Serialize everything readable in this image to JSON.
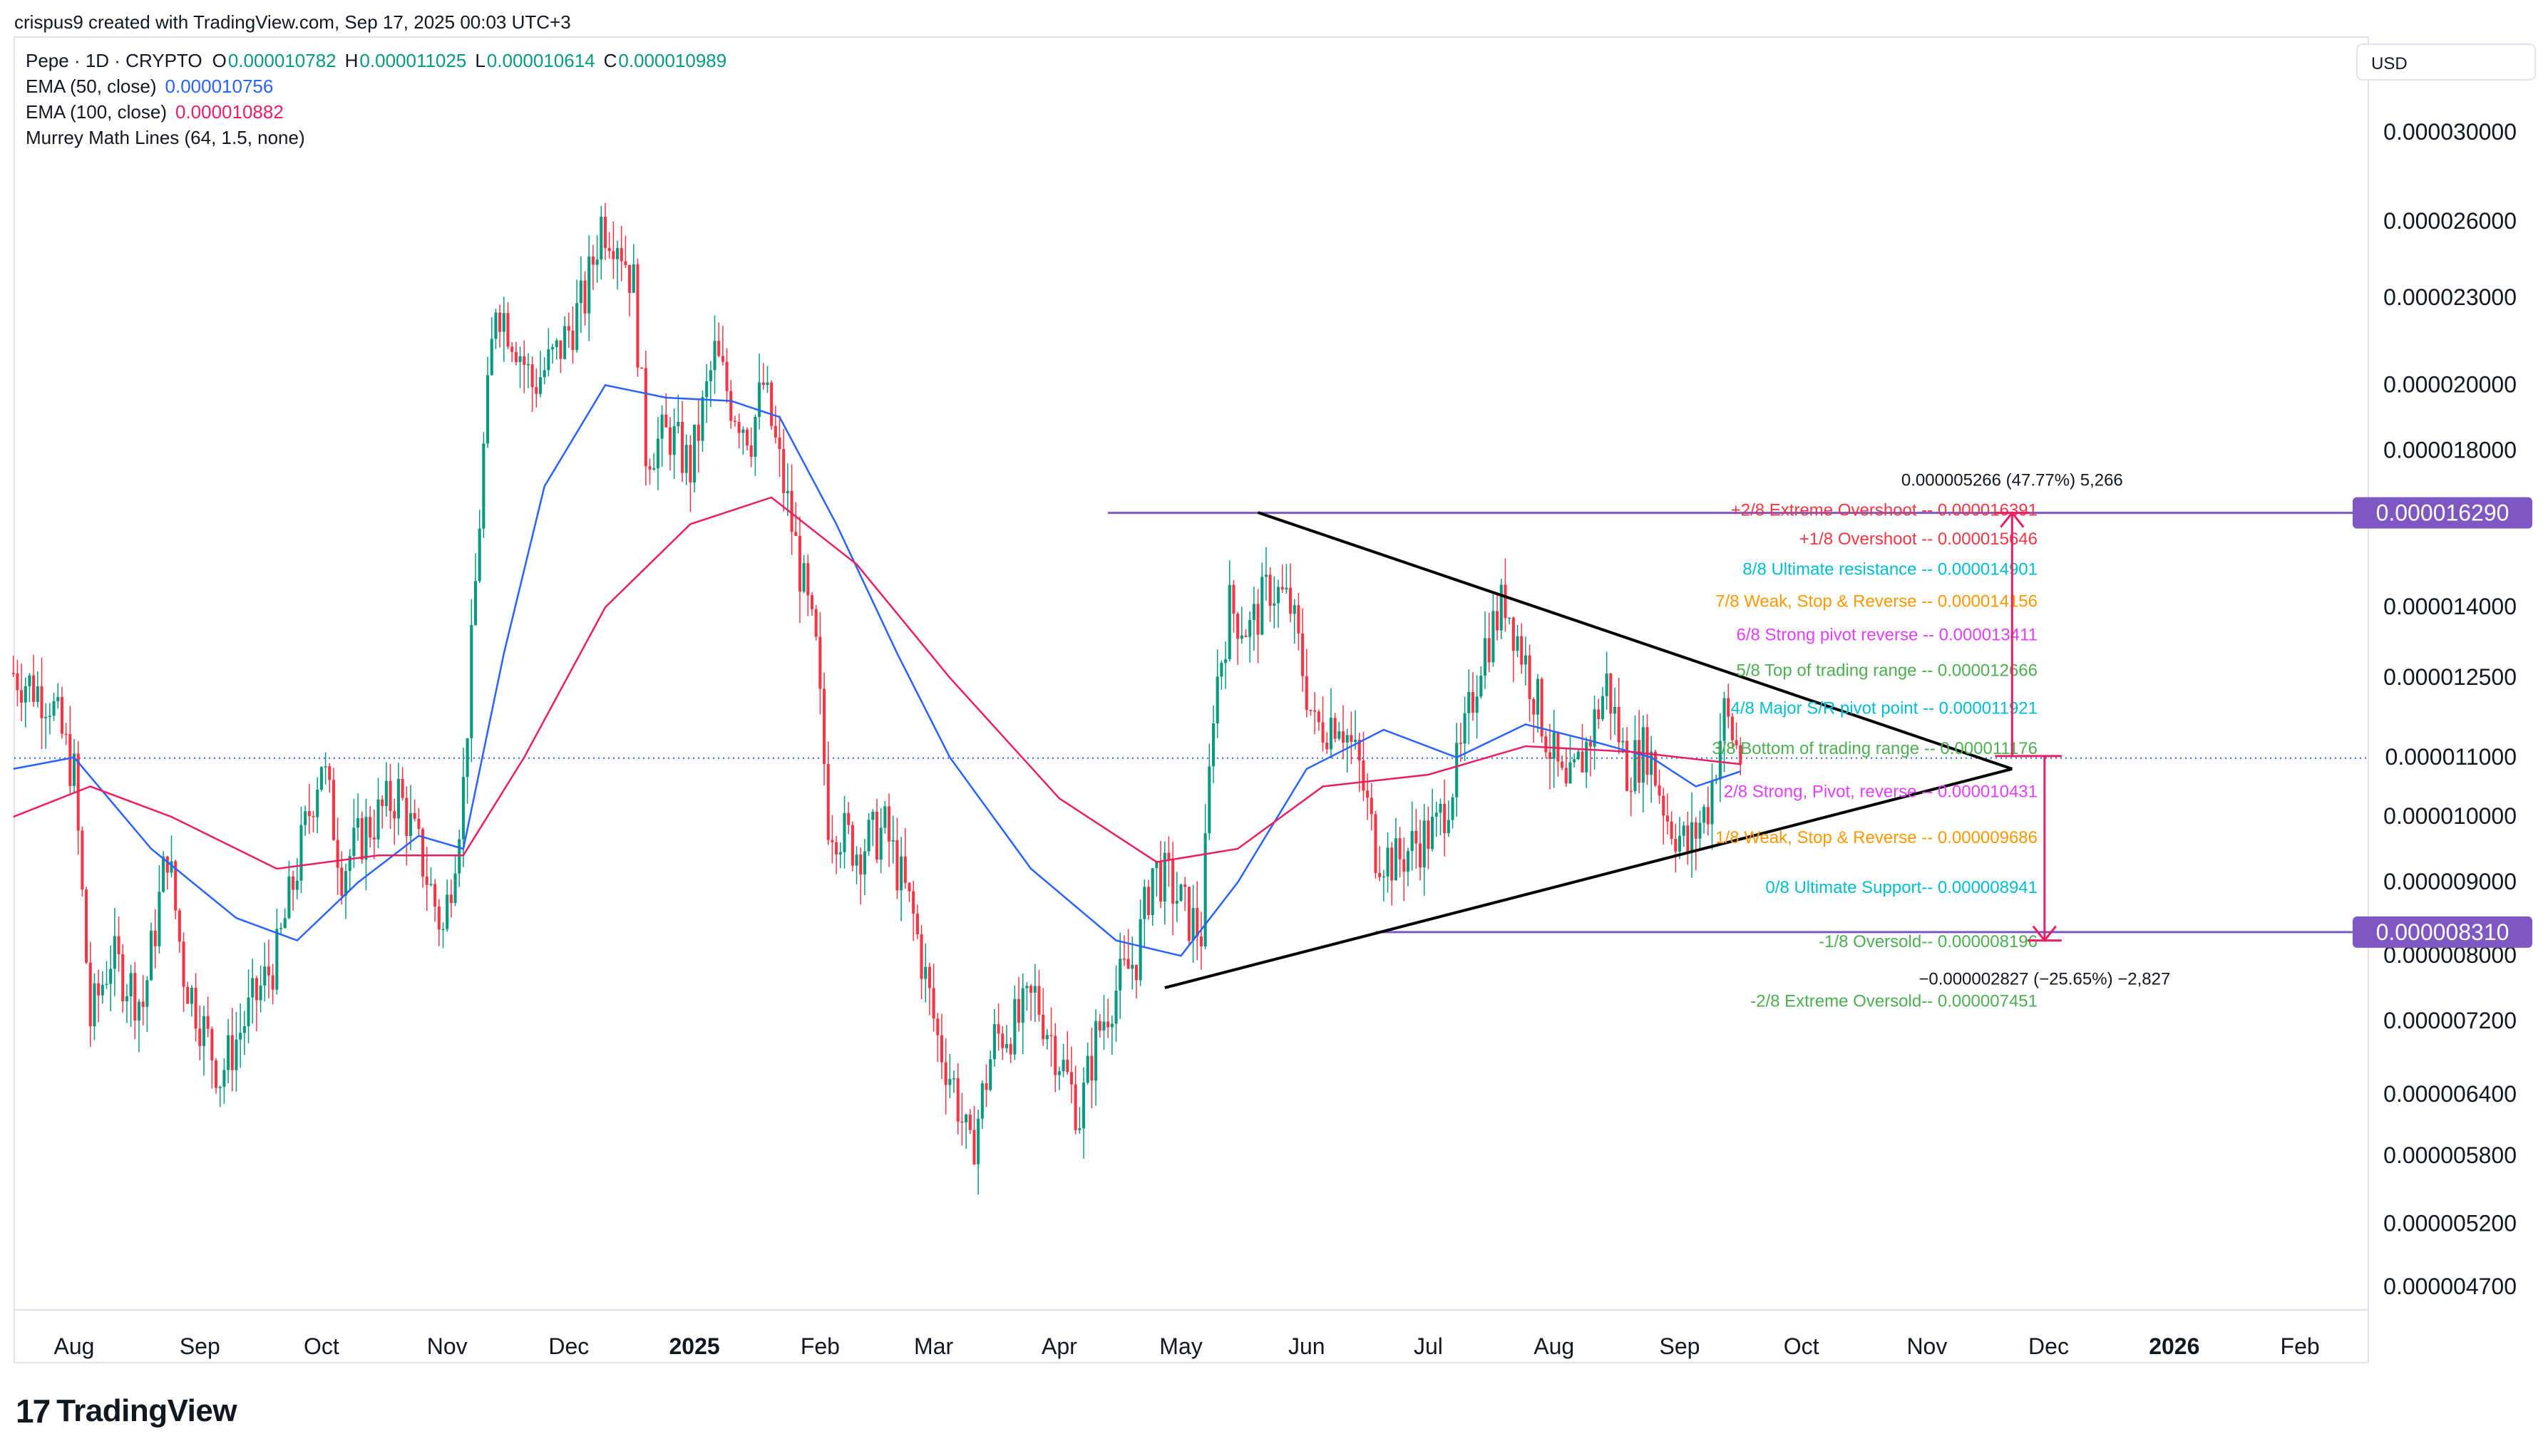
{
  "header": {
    "creator_line": "crispus9 created with TradingView.com, Sep 17, 2025 00:03 UTC+3",
    "symbol": "Pepe · 1D · CRYPTO",
    "ohlc": [
      {
        "k": "O",
        "v": "0.000010782"
      },
      {
        "k": "H",
        "v": "0.000011025"
      },
      {
        "k": "L",
        "v": "0.000010614"
      },
      {
        "k": "C",
        "v": "0.000010989"
      }
    ],
    "indicators": [
      {
        "label": "EMA (50, close)",
        "value": "0.000010756",
        "color": "#2962ff"
      },
      {
        "label": "EMA (100, close)",
        "value": "0.000010882",
        "color": "#e91e63"
      },
      {
        "label": "Murrey Math Lines (64, 1.5, none)",
        "value": "",
        "color": "#131722"
      }
    ],
    "currency": "USD"
  },
  "footer": {
    "logo_mark": "17",
    "logo_text": "TradingView"
  },
  "chart_data": {
    "type": "candlestick",
    "x_axis_labels": [
      {
        "label": "Aug",
        "date": "2024-08-01",
        "bold": false
      },
      {
        "label": "Sep",
        "date": "2024-09-01",
        "bold": false
      },
      {
        "label": "Oct",
        "date": "2024-10-01",
        "bold": false
      },
      {
        "label": "Nov",
        "date": "2024-11-01",
        "bold": false
      },
      {
        "label": "Dec",
        "date": "2024-12-01",
        "bold": false
      },
      {
        "label": "2025",
        "date": "2025-01-01",
        "bold": true
      },
      {
        "label": "Feb",
        "date": "2025-02-01",
        "bold": false
      },
      {
        "label": "Mar",
        "date": "2025-03-01",
        "bold": false
      },
      {
        "label": "Apr",
        "date": "2025-04-01",
        "bold": false
      },
      {
        "label": "May",
        "date": "2025-05-01",
        "bold": false
      },
      {
        "label": "Jun",
        "date": "2025-06-01",
        "bold": false
      },
      {
        "label": "Jul",
        "date": "2025-07-01",
        "bold": false
      },
      {
        "label": "Aug",
        "date": "2025-08-01",
        "bold": false
      },
      {
        "label": "Sep",
        "date": "2025-09-01",
        "bold": false
      },
      {
        "label": "Oct",
        "date": "2025-10-01",
        "bold": false
      },
      {
        "label": "Nov",
        "date": "2025-11-01",
        "bold": false
      },
      {
        "label": "Dec",
        "date": "2025-12-01",
        "bold": false
      },
      {
        "label": "2026",
        "date": "2026-01-01",
        "bold": true
      },
      {
        "label": "Feb",
        "date": "2026-02-01",
        "bold": false
      }
    ],
    "y_axis_labels": [
      "0.000030000",
      "0.000026000",
      "0.000023000",
      "0.000020000",
      "0.000018000",
      "0.000014000",
      "0.000012500",
      "0.000011000",
      "0.000010000",
      "0.000009000",
      "0.000008000",
      "0.000007200",
      "0.000006400",
      "0.000005800",
      "0.000005200",
      "0.000004700"
    ],
    "y_scale": "log",
    "ylim": [
      4.5e-06,
      3.25e-05
    ],
    "price_tags": [
      {
        "value": 1.629e-05,
        "label": "0.000016290",
        "color": "#7e57c2"
      },
      {
        "value": 8.31e-06,
        "label": "0.000008310",
        "color": "#7e57c2"
      }
    ],
    "current_price": 1.0989e-05,
    "horizontal_lines": [
      {
        "value": 1.629e-05,
        "from": "2025-04-13",
        "color": "#7e57c2"
      },
      {
        "value": 8.31e-06,
        "from": "2025-06-18",
        "color": "#7e57c2"
      }
    ],
    "murrey_levels": [
      {
        "label": "+2/8 Extreme Overshoot --",
        "value": "0.000016391",
        "price": 1.6391e-05,
        "color": "#f23645"
      },
      {
        "label": "+1/8 Overshoot --",
        "value": "0.000015646",
        "price": 1.5646e-05,
        "color": "#f23645"
      },
      {
        "label": "8/8 Ultimate resistance --",
        "value": "0.000014901",
        "price": 1.4901e-05,
        "color": "#00bcd4"
      },
      {
        "label": "7/8 Weak, Stop & Reverse --",
        "value": "0.000014156",
        "price": 1.4156e-05,
        "color": "#ff9800"
      },
      {
        "label": "6/8 Strong pivot reverse --",
        "value": "0.000013411",
        "price": 1.3411e-05,
        "color": "#e040fb"
      },
      {
        "label": "5/8 Top of trading range --",
        "value": "0.000012666",
        "price": 1.2666e-05,
        "color": "#4caf50"
      },
      {
        "label": "4/8 Major S/R pivot point --",
        "value": "0.000011921",
        "price": 1.1921e-05,
        "color": "#00bcd4"
      },
      {
        "label": "3/8 Bottom of trading range --",
        "value": "0.000011176",
        "price": 1.1176e-05,
        "color": "#4caf50"
      },
      {
        "label": "2/8 Strong, Pivot, reverse --",
        "value": "0.000010431",
        "price": 1.0431e-05,
        "color": "#e040fb"
      },
      {
        "label": "1/8 Weak, Stop & Reverse --",
        "value": "0.000009686",
        "price": 9.686e-06,
        "color": "#ff9800"
      },
      {
        "label": "0/8 Ultimate Support--",
        "value": "0.000008941",
        "price": 8.941e-06,
        "color": "#00bcd4"
      },
      {
        "label": "-1/8 Oversold--",
        "value": "0.000008196",
        "price": 8.196e-06,
        "color": "#4caf50"
      },
      {
        "label": "-2/8 Extreme Oversold--",
        "value": "0.000007451",
        "price": 7.451e-06,
        "color": "#4caf50"
      }
    ],
    "triangle": {
      "upper": [
        {
          "date": "2025-05-20",
          "price": 1.63e-05
        },
        {
          "date": "2025-11-22",
          "price": 1.08e-05
        }
      ],
      "lower": [
        {
          "date": "2025-04-27",
          "price": 7.6e-06
        },
        {
          "date": "2025-11-22",
          "price": 1.08e-05
        }
      ]
    },
    "measures": [
      {
        "date": "2025-11-22",
        "from": 1.1025e-05,
        "to": 1.629e-05,
        "label": "0.000005266 (47.77%) 5,266",
        "color": "#e91e63"
      },
      {
        "date": "2025-11-30",
        "from": 1.1025e-05,
        "to": 8.2e-06,
        "label": "−0.000002827 (−25.65%) −2,827",
        "color": "#e91e63"
      }
    ],
    "series": [
      {
        "name": "Pepe",
        "kind": "close",
        "color_up": "#089981",
        "color_down": "#f23645",
        "points": [
          [
            "2024-07-17",
            1.26e-05
          ],
          [
            "2024-07-26",
            1.21e-05
          ],
          [
            "2024-08-01",
            1.07e-05
          ],
          [
            "2024-08-05",
            7.2e-06
          ],
          [
            "2024-08-10",
            8e-06
          ],
          [
            "2024-08-18",
            7.4e-06
          ],
          [
            "2024-08-24",
            9.5e-06
          ],
          [
            "2024-08-28",
            7.8e-06
          ],
          [
            "2024-09-06",
            6.6e-06
          ],
          [
            "2024-09-12",
            7.2e-06
          ],
          [
            "2024-09-20",
            8e-06
          ],
          [
            "2024-09-27",
            9.8e-06
          ],
          [
            "2024-10-01",
            1.1e-05
          ],
          [
            "2024-10-06",
            9.2e-06
          ],
          [
            "2024-10-12",
            9.8e-06
          ],
          [
            "2024-10-20",
            1.04e-05
          ],
          [
            "2024-10-26",
            9.3e-06
          ],
          [
            "2024-10-31",
            8.3e-06
          ],
          [
            "2024-11-05",
            1.05e-05
          ],
          [
            "2024-11-10",
            1.8e-05
          ],
          [
            "2024-11-13",
            2.3e-05
          ],
          [
            "2024-11-18",
            2.15e-05
          ],
          [
            "2024-11-22",
            2e-05
          ],
          [
            "2024-11-28",
            2.1e-05
          ],
          [
            "2024-12-05",
            2.3e-05
          ],
          [
            "2024-12-09",
            2.6e-05
          ],
          [
            "2024-12-13",
            2.55e-05
          ],
          [
            "2024-12-17",
            2.35e-05
          ],
          [
            "2024-12-20",
            1.8e-05
          ],
          [
            "2024-12-26",
            1.85e-05
          ],
          [
            "2024-12-31",
            1.75e-05
          ],
          [
            "2025-01-06",
            2.1e-05
          ],
          [
            "2025-01-10",
            1.95e-05
          ],
          [
            "2025-01-15",
            1.85e-05
          ],
          [
            "2025-01-18",
            2e-05
          ],
          [
            "2025-01-24",
            1.65e-05
          ],
          [
            "2025-01-31",
            1.3e-05
          ],
          [
            "2025-02-03",
            1e-05
          ],
          [
            "2025-02-10",
            9.5e-06
          ],
          [
            "2025-02-17",
            9.8e-06
          ],
          [
            "2025-02-24",
            8.5e-06
          ],
          [
            "2025-03-02",
            7e-06
          ],
          [
            "2025-03-06",
            6.5e-06
          ],
          [
            "2025-03-10",
            5.8e-06
          ],
          [
            "2025-03-16",
            7e-06
          ],
          [
            "2025-03-22",
            7.2e-06
          ],
          [
            "2025-03-26",
            7.5e-06
          ],
          [
            "2025-04-01",
            6.8e-06
          ],
          [
            "2025-04-06",
            6.2e-06
          ],
          [
            "2025-04-10",
            7e-06
          ],
          [
            "2025-04-14",
            7.5e-06
          ],
          [
            "2025-04-20",
            8e-06
          ],
          [
            "2025-04-24",
            9.2e-06
          ],
          [
            "2025-04-28",
            9e-06
          ],
          [
            "2025-05-03",
            8.5e-06
          ],
          [
            "2025-05-06",
            8.3e-06
          ],
          [
            "2025-05-09",
            1.2e-05
          ],
          [
            "2025-05-13",
            1.4e-05
          ],
          [
            "2025-05-18",
            1.35e-05
          ],
          [
            "2025-05-23",
            1.45e-05
          ],
          [
            "2025-05-28",
            1.4e-05
          ],
          [
            "2025-06-03",
            1.15e-05
          ],
          [
            "2025-06-09",
            1.18e-05
          ],
          [
            "2025-06-14",
            1.08e-05
          ],
          [
            "2025-06-18",
            9.5e-06
          ],
          [
            "2025-06-23",
            9.3e-06
          ],
          [
            "2025-06-28",
            9.6e-06
          ],
          [
            "2025-07-03",
            9.8e-06
          ],
          [
            "2025-07-09",
            1.1e-05
          ],
          [
            "2025-07-14",
            1.3e-05
          ],
          [
            "2025-07-20",
            1.42e-05
          ],
          [
            "2025-07-25",
            1.28e-05
          ],
          [
            "2025-07-31",
            1.12e-05
          ],
          [
            "2025-08-04",
            1.03e-05
          ],
          [
            "2025-08-09",
            1.12e-05
          ],
          [
            "2025-08-14",
            1.24e-05
          ],
          [
            "2025-08-19",
            1.08e-05
          ],
          [
            "2025-08-24",
            1.12e-05
          ],
          [
            "2025-08-29",
            1e-05
          ],
          [
            "2025-09-03",
            9.5e-06
          ],
          [
            "2025-09-08",
            1.02e-05
          ],
          [
            "2025-09-12",
            1.18e-05
          ],
          [
            "2025-09-16",
            1.1e-05
          ]
        ]
      },
      {
        "name": "EMA (50, close)",
        "kind": "line",
        "color": "#2962ff",
        "points": [
          [
            "2024-07-17",
            1.08e-05
          ],
          [
            "2024-08-01",
            1.1e-05
          ],
          [
            "2024-08-20",
            9.5e-06
          ],
          [
            "2024-09-10",
            8.5e-06
          ],
          [
            "2024-09-25",
            8.2e-06
          ],
          [
            "2024-10-10",
            9e-06
          ],
          [
            "2024-10-25",
            9.7e-06
          ],
          [
            "2024-11-05",
            9.5e-06
          ],
          [
            "2024-11-15",
            1.3e-05
          ],
          [
            "2024-11-25",
            1.7e-05
          ],
          [
            "2024-12-10",
            2e-05
          ],
          [
            "2024-12-25",
            1.96e-05
          ],
          [
            "2025-01-10",
            1.95e-05
          ],
          [
            "2025-01-22",
            1.9e-05
          ],
          [
            "2025-02-05",
            1.6e-05
          ],
          [
            "2025-02-20",
            1.3e-05
          ],
          [
            "2025-03-05",
            1.1e-05
          ],
          [
            "2025-03-25",
            9.2e-06
          ],
          [
            "2025-04-15",
            8.2e-06
          ],
          [
            "2025-05-01",
            8e-06
          ],
          [
            "2025-05-15",
            9e-06
          ],
          [
            "2025-06-01",
            1.08e-05
          ],
          [
            "2025-06-20",
            1.15e-05
          ],
          [
            "2025-07-08",
            1.1e-05
          ],
          [
            "2025-07-25",
            1.16e-05
          ],
          [
            "2025-08-10",
            1.13e-05
          ],
          [
            "2025-08-25",
            1.1e-05
          ],
          [
            "2025-09-05",
            1.05e-05
          ],
          [
            "2025-09-16",
            1.0756e-05
          ]
        ]
      },
      {
        "name": "EMA (100, close)",
        "kind": "line",
        "color": "#e91e63",
        "points": [
          [
            "2024-07-17",
            1e-05
          ],
          [
            "2024-08-05",
            1.05e-05
          ],
          [
            "2024-08-25",
            1e-05
          ],
          [
            "2024-09-20",
            9.2e-06
          ],
          [
            "2024-10-15",
            9.4e-06
          ],
          [
            "2024-11-05",
            9.4e-06
          ],
          [
            "2024-11-20",
            1.1e-05
          ],
          [
            "2024-12-10",
            1.4e-05
          ],
          [
            "2024-12-31",
            1.6e-05
          ],
          [
            "2025-01-20",
            1.67e-05
          ],
          [
            "2025-02-10",
            1.5e-05
          ],
          [
            "2025-03-05",
            1.25e-05
          ],
          [
            "2025-04-01",
            1.03e-05
          ],
          [
            "2025-04-25",
            9.3e-06
          ],
          [
            "2025-05-15",
            9.5e-06
          ],
          [
            "2025-06-05",
            1.05e-05
          ],
          [
            "2025-07-01",
            1.07e-05
          ],
          [
            "2025-07-25",
            1.12e-05
          ],
          [
            "2025-08-20",
            1.11e-05
          ],
          [
            "2025-09-16",
            1.0882e-05
          ]
        ]
      }
    ]
  }
}
